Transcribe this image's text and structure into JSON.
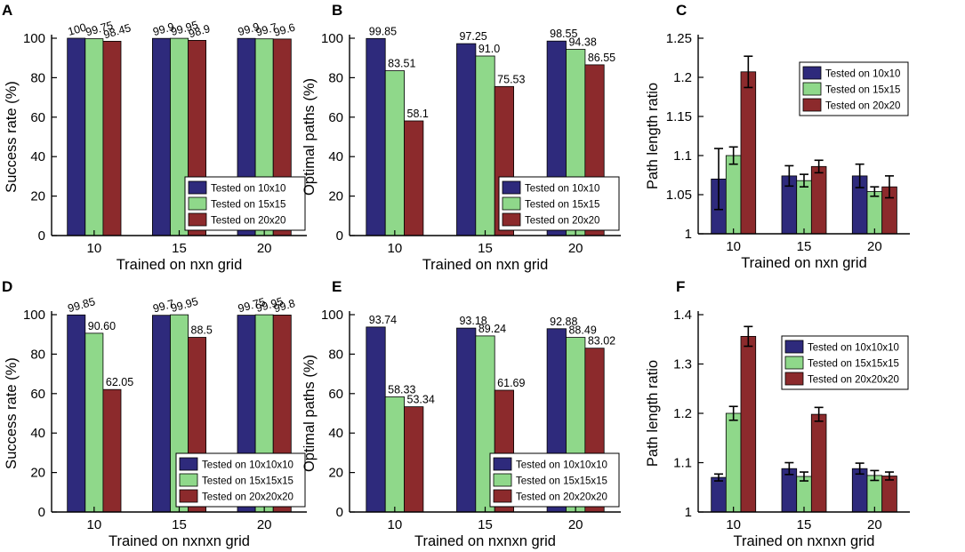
{
  "chart_data": [
    {
      "panel": "A",
      "type": "bar",
      "categories": [
        "10",
        "15",
        "20"
      ],
      "xlabel": "Trained on nxn grid",
      "ylabel": "Success rate (%)",
      "ylim": [
        0,
        100
      ],
      "yticks": [
        "0",
        "20",
        "40",
        "60",
        "80",
        "100"
      ],
      "legend": [
        "Tested on 10x10",
        "Tested on 15x15",
        "Tested on 20x20"
      ],
      "legend_position": "bottom-right",
      "series": [
        {
          "name": "Tested on 10x10",
          "values": [
            100,
            99.9,
            99.9
          ],
          "labels": [
            "100",
            "99.9",
            "99.9"
          ]
        },
        {
          "name": "Tested on 15x15",
          "values": [
            99.75,
            99.95,
            99.7
          ],
          "labels": [
            "99.75",
            "99.95",
            "99.7"
          ]
        },
        {
          "name": "Tested on 20x20",
          "values": [
            98.45,
            98.9,
            99.6
          ],
          "labels": [
            "98.45",
            "98.9",
            "99.6"
          ]
        }
      ]
    },
    {
      "panel": "B",
      "type": "bar",
      "categories": [
        "10",
        "15",
        "20"
      ],
      "xlabel": "Trained on nxn grid",
      "ylabel": "Optimal paths (%)",
      "ylim": [
        0,
        100
      ],
      "yticks": [
        "0",
        "20",
        "40",
        "60",
        "80",
        "100"
      ],
      "legend": [
        "Tested on 10x10",
        "Tested on 15x15",
        "Tested on 20x20"
      ],
      "legend_position": "bottom-right",
      "series": [
        {
          "name": "Tested on 10x10",
          "values": [
            99.85,
            97.25,
            98.55
          ],
          "labels": [
            "99.85",
            "97.25",
            "98.55"
          ]
        },
        {
          "name": "Tested on 15x15",
          "values": [
            83.51,
            91.0,
            94.38
          ],
          "labels": [
            "83.51",
            "91.0",
            "94.38"
          ]
        },
        {
          "name": "Tested on 20x20",
          "values": [
            58.1,
            75.53,
            86.55
          ],
          "labels": [
            "58.1",
            "75.53",
            "86.55"
          ]
        }
      ]
    },
    {
      "panel": "C",
      "type": "bar",
      "categories": [
        "10",
        "15",
        "20"
      ],
      "xlabel": "Trained on nxn grid",
      "ylabel": "Path length ratio",
      "ylim": [
        1,
        1.25
      ],
      "yticks": [
        "1",
        "1.05",
        "1.1",
        "1.15",
        "1.2",
        "1.25"
      ],
      "legend": [
        "Tested on 10x10",
        "Tested on 15x15",
        "Tested on 20x20"
      ],
      "legend_position": "top-right",
      "series": [
        {
          "name": "Tested on 10x10",
          "values": [
            1.07,
            1.074,
            1.074
          ],
          "errors": [
            0.039,
            0.013,
            0.015
          ]
        },
        {
          "name": "Tested on 15x15",
          "values": [
            1.1,
            1.068,
            1.054
          ],
          "errors": [
            0.011,
            0.008,
            0.006
          ]
        },
        {
          "name": "Tested on 20x20",
          "values": [
            1.207,
            1.086,
            1.06
          ],
          "errors": [
            0.02,
            0.008,
            0.014
          ]
        }
      ]
    },
    {
      "panel": "D",
      "type": "bar",
      "categories": [
        "10",
        "15",
        "20"
      ],
      "xlabel": "Trained on nxnxn grid",
      "ylabel": "Success rate (%)",
      "ylim": [
        0,
        100
      ],
      "yticks": [
        "0",
        "20",
        "40",
        "60",
        "80",
        "100"
      ],
      "legend": [
        "Tested on 10x10x10",
        "Tested on 15x15x15",
        "Tested on 20x20x20"
      ],
      "legend_position": "bottom-right",
      "series": [
        {
          "name": "Tested on 10x10x10",
          "values": [
            99.85,
            99.7,
            99.75
          ],
          "labels": [
            "99.85",
            "99.7",
            "99.75"
          ]
        },
        {
          "name": "Tested on 15x15x15",
          "values": [
            90.6,
            99.95,
            99.95
          ],
          "labels": [
            "90.60",
            "99.95",
            "99.95"
          ]
        },
        {
          "name": "Tested on 20x20x20",
          "values": [
            62.05,
            88.5,
            99.8
          ],
          "labels": [
            "62.05",
            "88.5",
            "99.8"
          ]
        }
      ]
    },
    {
      "panel": "E",
      "type": "bar",
      "categories": [
        "10",
        "15",
        "20"
      ],
      "xlabel": "Trained on nxnxn grid",
      "ylabel": "Optimal paths (%)",
      "ylim": [
        0,
        100
      ],
      "yticks": [
        "0",
        "20",
        "40",
        "60",
        "80",
        "100"
      ],
      "legend": [
        "Tested on 10x10x10",
        "Tested on 15x15x15",
        "Tested on 20x20x20"
      ],
      "legend_position": "bottom-right",
      "series": [
        {
          "name": "Tested on 10x10x10",
          "values": [
            93.74,
            93.18,
            92.88
          ],
          "labels": [
            "93.74",
            "93.18",
            "92.88"
          ]
        },
        {
          "name": "Tested on 15x15x15",
          "values": [
            58.33,
            89.24,
            88.49
          ],
          "labels": [
            "58.33",
            "89.24",
            "88.49"
          ]
        },
        {
          "name": "Tested on 20x20x20",
          "values": [
            53.34,
            61.69,
            83.02
          ],
          "labels": [
            "53.34",
            "61.69",
            "83.02"
          ]
        }
      ]
    },
    {
      "panel": "F",
      "type": "bar",
      "categories": [
        "10",
        "15",
        "20"
      ],
      "xlabel": "Trained on nxnxn grid",
      "ylabel": "Path length ratio",
      "ylim": [
        1,
        1.4
      ],
      "yticks": [
        "1",
        "1.1",
        "1.2",
        "1.3",
        "1.4"
      ],
      "legend": [
        "Tested on 10x10x10",
        "Tested on 15x15x15",
        "Tested on 20x20x20"
      ],
      "legend_position": "top-right",
      "series": [
        {
          "name": "Tested on 10x10x10",
          "values": [
            1.07,
            1.088,
            1.088
          ],
          "errors": [
            0.007,
            0.012,
            0.011
          ]
        },
        {
          "name": "Tested on 15x15x15",
          "values": [
            1.2,
            1.072,
            1.074
          ],
          "errors": [
            0.014,
            0.009,
            0.01
          ]
        },
        {
          "name": "Tested on 20x20x20",
          "values": [
            1.356,
            1.198,
            1.073
          ],
          "errors": [
            0.02,
            0.014,
            0.008
          ]
        }
      ]
    }
  ],
  "colors": {
    "series": [
      "#2e2a7c",
      "#8fd88a",
      "#8c2a2c"
    ]
  }
}
